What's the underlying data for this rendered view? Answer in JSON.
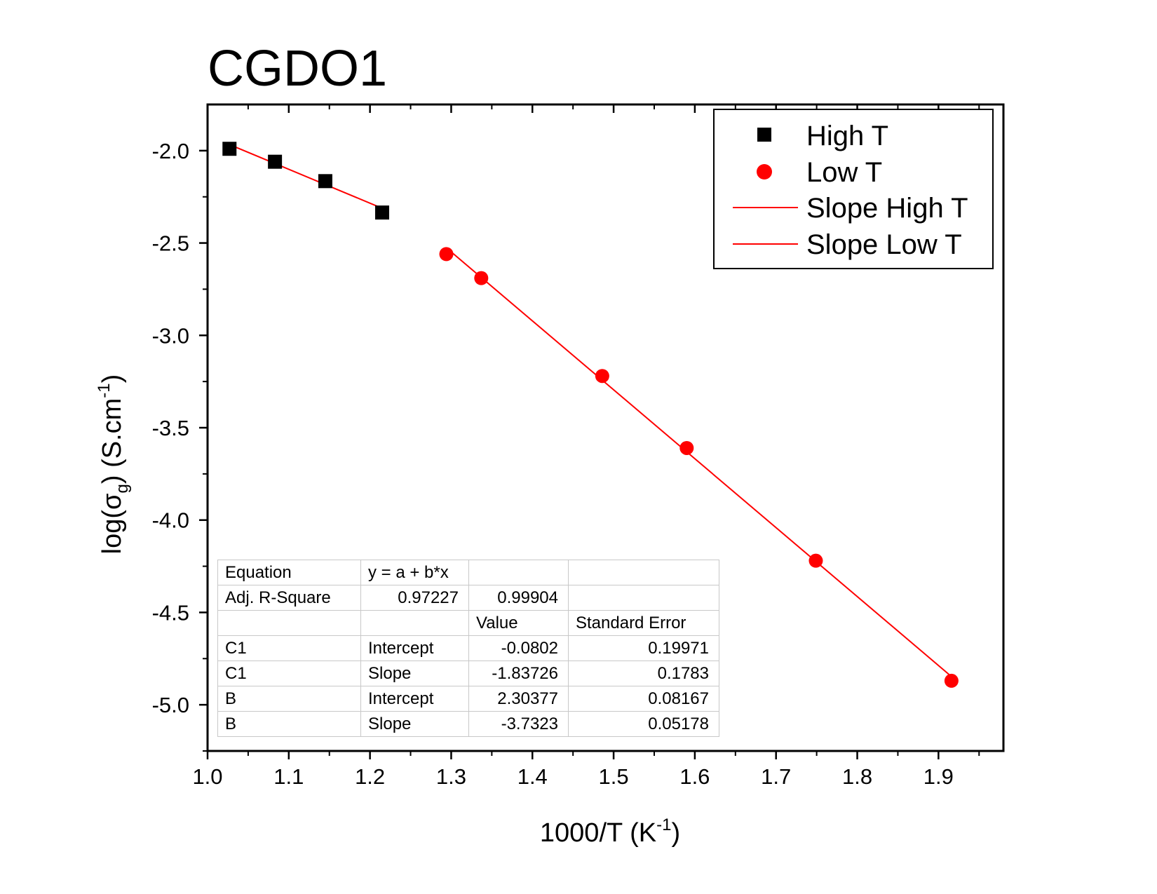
{
  "chart_data": {
    "type": "scatter",
    "title": "CGDO1",
    "xlabel": "1000/T (K",
    "xlabel_sup": "-1",
    "xlabel_close": ")",
    "ylabel_parts": [
      "log(",
      "σ",
      "g",
      ") (S.cm",
      "-1",
      ")"
    ],
    "xlim": [
      1.0,
      1.98
    ],
    "ylim": [
      -5.25,
      -1.75
    ],
    "xticks": [
      "1.0",
      "1.1",
      "1.2",
      "1.3",
      "1.4",
      "1.5",
      "1.6",
      "1.7",
      "1.8",
      "1.9"
    ],
    "yticks": [
      "-2.0",
      "-2.5",
      "-3.0",
      "-3.5",
      "-4.0",
      "-4.5",
      "-5.0"
    ],
    "series": [
      {
        "name": "High T",
        "marker": "square",
        "color": "#000000",
        "x": [
          1.027,
          1.083,
          1.145,
          1.215
        ],
        "y": [
          -1.99,
          -2.06,
          -2.165,
          -2.335
        ]
      },
      {
        "name": "Low T",
        "marker": "circle",
        "color": "#ff0000",
        "x": [
          1.294,
          1.337,
          1.486,
          1.59,
          1.749,
          1.916
        ],
        "y": [
          -2.56,
          -2.69,
          -3.22,
          -3.61,
          -4.22,
          -4.87
        ]
      },
      {
        "name": "Slope High T",
        "type": "line",
        "color": "#ff0000",
        "x": [
          1.027,
          1.215
        ],
        "y": [
          -1.967,
          -2.312
        ]
      },
      {
        "name": "Slope Low T",
        "type": "line",
        "color": "#ff0000",
        "x": [
          1.294,
          1.916
        ],
        "y": [
          -2.526,
          -4.847
        ]
      }
    ],
    "legend_position": "top-right",
    "fit_table": {
      "rows": [
        [
          "Equation",
          "y = a + b*x",
          "",
          ""
        ],
        [
          "Adj. R-Square",
          "0.97227",
          "0.99904",
          ""
        ],
        [
          "",
          "",
          "Value",
          "Standard Error"
        ],
        [
          "C1",
          "Intercept",
          "-0.0802",
          "0.19971"
        ],
        [
          "C1",
          "Slope",
          "-1.83726",
          "0.1783"
        ],
        [
          "B",
          "Intercept",
          "2.30377",
          "0.08167"
        ],
        [
          "B",
          "Slope",
          "-3.7323",
          "0.05178"
        ]
      ]
    }
  }
}
